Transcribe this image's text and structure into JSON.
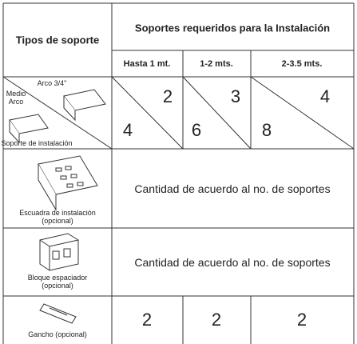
{
  "header": {
    "col_title": "Tipos de soporte",
    "group_title": "Soportes requeridos para la Instalación",
    "ranges": [
      "Hasta 1 mt.",
      "1-2 mts.",
      "2-3.5 mts."
    ]
  },
  "rows": [
    {
      "labels": [
        "Arco 3/4\"",
        "Medio Arco",
        "Soporte de instalación"
      ],
      "values": [
        {
          "top": 2,
          "bottom": 4
        },
        {
          "top": 3,
          "bottom": 6
        },
        {
          "top": 4,
          "bottom": 8
        }
      ]
    },
    {
      "labels": [
        "Escuadra de instalación",
        "(opcional)"
      ],
      "text": "Cantidad de acuerdo al no. de soportes"
    },
    {
      "labels": [
        "Bloque espaciador",
        "(opcional)"
      ],
      "text": "Cantidad de acuerdo al no. de soportes"
    },
    {
      "labels": [
        "Gancho (opcional)"
      ],
      "values": [
        2,
        2,
        2
      ]
    }
  ]
}
